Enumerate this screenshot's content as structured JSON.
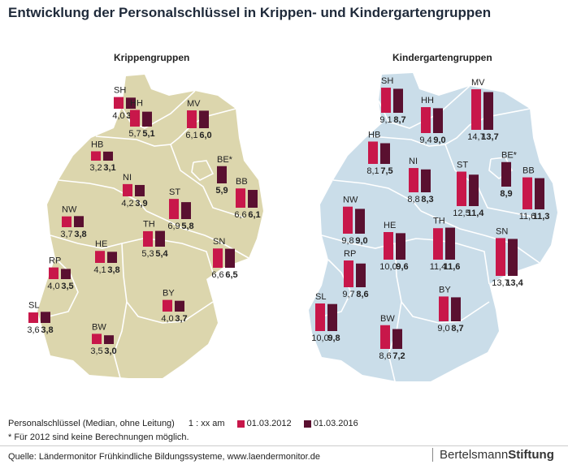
{
  "title": "Entwicklung der Personalschlüssel in Krippen- und Kindergartengruppen",
  "colors": {
    "y2012": "#c8174a",
    "y2016": "#5a1030",
    "krippe_map": "#dcd6ad",
    "kita_map": "#cadde9",
    "border": "#ffffff"
  },
  "legend": {
    "label": "Personalschlüssel (Median, ohne Leitung)",
    "ratio": "1 : xx am",
    "series1": "01.03.2012",
    "series2": "01.03.2016"
  },
  "note": "* Für 2012 sind keine Berechnungen möglich.",
  "source": "Quelle: Ländermonitor Frühkindliche Bildungssysteme, www.laendermonitor.de",
  "logo": {
    "part1": "Bertelsmann",
    "part2": "Stiftung"
  },
  "chart_data": [
    {
      "type": "bar",
      "title": "Krippengruppen",
      "series": [
        {
          "name": "01.03.2012"
        },
        {
          "name": "01.03.2016"
        }
      ],
      "states": [
        {
          "code": "SH",
          "v2012": 4.0,
          "v2016": 3.8,
          "l2012": "4,0",
          "l2016": "3,8"
        },
        {
          "code": "MV",
          "v2012": 6.1,
          "v2016": 6.0,
          "l2012": "6,1",
          "l2016": "6,0"
        },
        {
          "code": "HH",
          "v2012": 5.7,
          "v2016": 5.1,
          "l2012": "5,7",
          "l2016": "5,1"
        },
        {
          "code": "HB",
          "v2012": 3.2,
          "v2016": 3.1,
          "l2012": "3,2",
          "l2016": "3,1"
        },
        {
          "code": "BE*",
          "v2012": null,
          "v2016": 5.9,
          "l2012": "",
          "l2016": "5,9"
        },
        {
          "code": "NI",
          "v2012": 4.2,
          "v2016": 3.9,
          "l2012": "4,2",
          "l2016": "3,9"
        },
        {
          "code": "BB",
          "v2012": 6.6,
          "v2016": 6.1,
          "l2012": "6,6",
          "l2016": "6,1"
        },
        {
          "code": "NW",
          "v2012": 3.7,
          "v2016": 3.8,
          "l2012": "3,7",
          "l2016": "3,8"
        },
        {
          "code": "ST",
          "v2012": 6.9,
          "v2016": 5.8,
          "l2012": "6,9",
          "l2016": "5,8"
        },
        {
          "code": "TH",
          "v2012": 5.3,
          "v2016": 5.4,
          "l2012": "5,3",
          "l2016": "5,4"
        },
        {
          "code": "HE",
          "v2012": 4.1,
          "v2016": 3.8,
          "l2012": "4,1",
          "l2016": "3,8"
        },
        {
          "code": "SN",
          "v2012": 6.6,
          "v2016": 6.5,
          "l2012": "6,6",
          "l2016": "6,5"
        },
        {
          "code": "RP",
          "v2012": 4.0,
          "v2016": 3.5,
          "l2012": "4,0",
          "l2016": "3,5"
        },
        {
          "code": "BY",
          "v2012": 4.0,
          "v2016": 3.7,
          "l2012": "4,0",
          "l2016": "3,7"
        },
        {
          "code": "SL",
          "v2012": 3.6,
          "v2016": 3.8,
          "l2012": "3,6",
          "l2016": "3,8"
        },
        {
          "code": "BW",
          "v2012": 3.5,
          "v2016": 3.0,
          "l2012": "3,5",
          "l2016": "3,0"
        }
      ]
    },
    {
      "type": "bar",
      "title": "Kindergartengruppen",
      "series": [
        {
          "name": "01.03.2012"
        },
        {
          "name": "01.03.2016"
        }
      ],
      "states": [
        {
          "code": "SH",
          "v2012": 9.1,
          "v2016": 8.7,
          "l2012": "9,1",
          "l2016": "8,7"
        },
        {
          "code": "MV",
          "v2012": 14.7,
          "v2016": 13.7,
          "l2012": "14,7",
          "l2016": "13,7"
        },
        {
          "code": "HH",
          "v2012": 9.4,
          "v2016": 9.0,
          "l2012": "9,4",
          "l2016": "9,0"
        },
        {
          "code": "HB",
          "v2012": 8.1,
          "v2016": 7.5,
          "l2012": "8,1",
          "l2016": "7,5"
        },
        {
          "code": "BE*",
          "v2012": null,
          "v2016": 8.9,
          "l2012": "",
          "l2016": "8,9"
        },
        {
          "code": "NI",
          "v2012": 8.8,
          "v2016": 8.3,
          "l2012": "8,8",
          "l2016": "8,3"
        },
        {
          "code": "ST",
          "v2012": 12.5,
          "v2016": 11.4,
          "l2012": "12,5",
          "l2016": "11,4"
        },
        {
          "code": "BB",
          "v2012": 11.6,
          "v2016": 11.3,
          "l2012": "11,6",
          "l2016": "11,3"
        },
        {
          "code": "NW",
          "v2012": 9.8,
          "v2016": 9.0,
          "l2012": "9,8",
          "l2016": "9,0"
        },
        {
          "code": "HE",
          "v2012": 10.0,
          "v2016": 9.6,
          "l2012": "10,0",
          "l2016": "9,6"
        },
        {
          "code": "TH",
          "v2012": 11.4,
          "v2016": 11.6,
          "l2012": "11,4",
          "l2016": "11,6"
        },
        {
          "code": "SN",
          "v2012": 13.7,
          "v2016": 13.4,
          "l2012": "13,7",
          "l2016": "13,4"
        },
        {
          "code": "RP",
          "v2012": 9.7,
          "v2016": 8.6,
          "l2012": "9,7",
          "l2016": "8,6"
        },
        {
          "code": "SL",
          "v2012": 10.0,
          "v2016": 9.8,
          "l2012": "10,0",
          "l2016": "9,8"
        },
        {
          "code": "BY",
          "v2012": 9.0,
          "v2016": 8.7,
          "l2012": "9,0",
          "l2016": "8,7"
        },
        {
          "code": "BW",
          "v2012": 8.6,
          "v2016": 7.2,
          "l2012": "8,6",
          "l2016": "7,2"
        }
      ]
    }
  ]
}
